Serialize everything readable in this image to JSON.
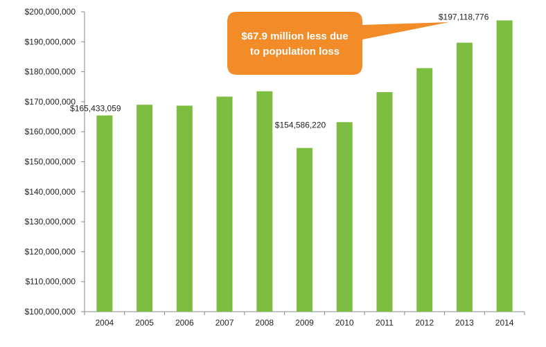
{
  "chart_data": {
    "type": "bar",
    "title": "",
    "xlabel": "",
    "ylabel": "",
    "categories": [
      "2004",
      "2005",
      "2006",
      "2007",
      "2008",
      "2009",
      "2010",
      "2011",
      "2012",
      "2013",
      "2014"
    ],
    "values": [
      165433059,
      169000000,
      168700000,
      171700000,
      173500000,
      154586220,
      163200000,
      173200000,
      181200000,
      189700000,
      197118776
    ],
    "ylim": [
      100000000,
      200000000
    ],
    "yticks": [
      100000000,
      110000000,
      120000000,
      130000000,
      140000000,
      150000000,
      160000000,
      170000000,
      180000000,
      190000000,
      200000000
    ],
    "ytick_labels": [
      "$100,000,000",
      "$110,000,000",
      "$120,000,000",
      "$130,000,000",
      "$140,000,000",
      "$150,000,000",
      "$160,000,000",
      "$170,000,000",
      "$180,000,000",
      "$190,000,000",
      "$200,000,000"
    ],
    "data_labels": [
      {
        "category": "2004",
        "text": "$165,433,059"
      },
      {
        "category": "2009",
        "text": "$154,586,220"
      },
      {
        "category": "2014",
        "text": "$197,118,776"
      }
    ],
    "grid": false,
    "legend": "none",
    "bar_color": "#7DBD42",
    "annotation": {
      "lines": [
        "$67.9 million less due",
        "to population loss"
      ],
      "color": "#F28C28",
      "points_to": "2014"
    }
  }
}
